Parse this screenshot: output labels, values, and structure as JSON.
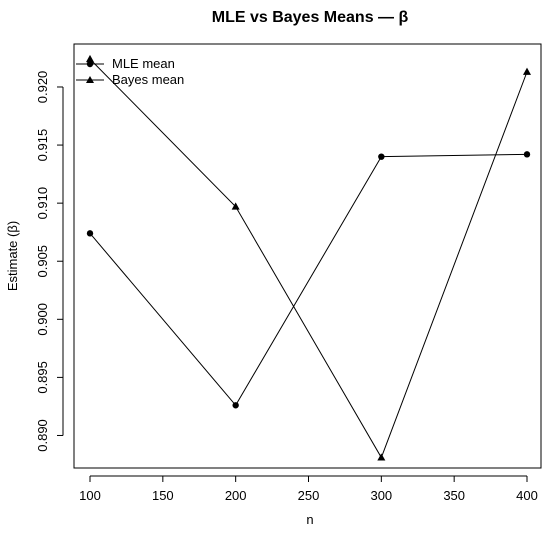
{
  "chart_data": {
    "type": "line",
    "title": "MLE vs Bayes Means — β",
    "xlabel": "n",
    "ylabel": "Estimate (β)",
    "x": [
      100,
      200,
      300,
      400
    ],
    "xlim": [
      100,
      400
    ],
    "ylim": [
      0.8872,
      0.9237
    ],
    "xticks": [
      100,
      150,
      200,
      250,
      300,
      350,
      400
    ],
    "yticks": [
      0.89,
      0.895,
      0.9,
      0.905,
      0.91,
      0.915,
      0.92
    ],
    "yticklabels": [
      "0.890",
      "0.895",
      "0.900",
      "0.905",
      "0.910",
      "0.915",
      "0.920"
    ],
    "legend_position": "top-left",
    "grid": false,
    "series": [
      {
        "name": "MLE mean",
        "marker": "circle",
        "color": "#000000",
        "values": [
          0.9074,
          0.8926,
          0.914,
          0.9142
        ]
      },
      {
        "name": "Bayes mean",
        "marker": "triangle",
        "color": "#000000",
        "values": [
          0.9224,
          0.9097,
          0.8881,
          0.9213
        ]
      }
    ]
  }
}
